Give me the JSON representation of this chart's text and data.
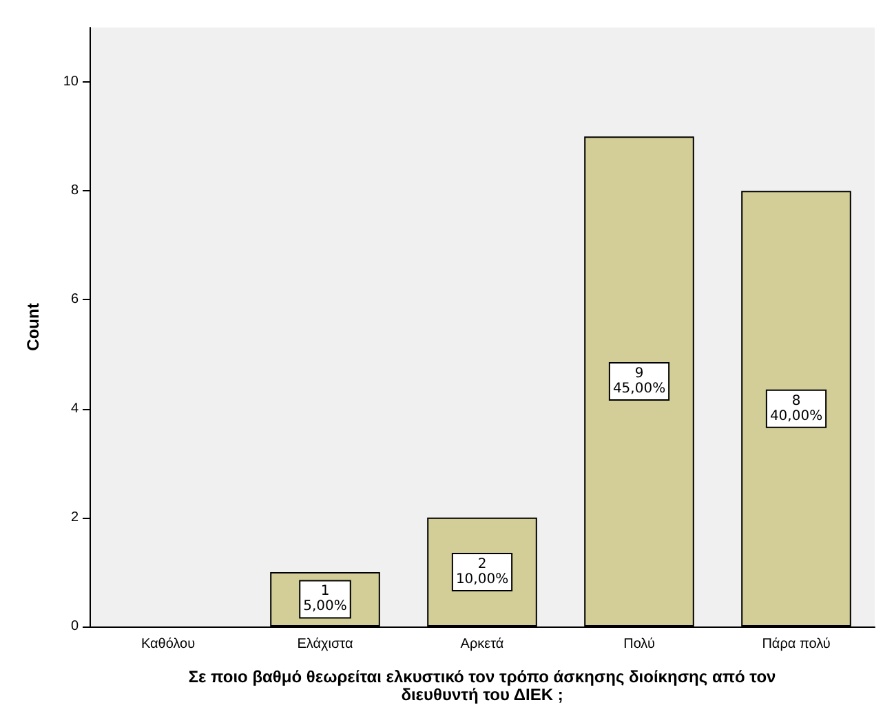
{
  "chart_data": {
    "type": "bar",
    "xlabel": "Σε ποιο βαθμό θεωρείται ελκυστικό τον τρόπο άσκησης διοίκησης από τον\nδιευθυντή του ΔΙΕΚ ;",
    "ylabel": "Count",
    "categories": [
      "Καθόλου",
      "Ελάχιστα",
      "Αρκετά",
      "Πολύ",
      "Πάρα πολύ"
    ],
    "values": [
      0,
      1,
      2,
      9,
      8
    ],
    "value_labels": [
      null,
      "1\n5,00%",
      "2\n10,00%",
      "9\n45,00%",
      "8\n40,00%"
    ],
    "color": "#d3ce97",
    "ylim": [
      0,
      11
    ],
    "yticks": [
      0,
      2,
      4,
      6,
      8,
      10
    ],
    "grid": false
  }
}
